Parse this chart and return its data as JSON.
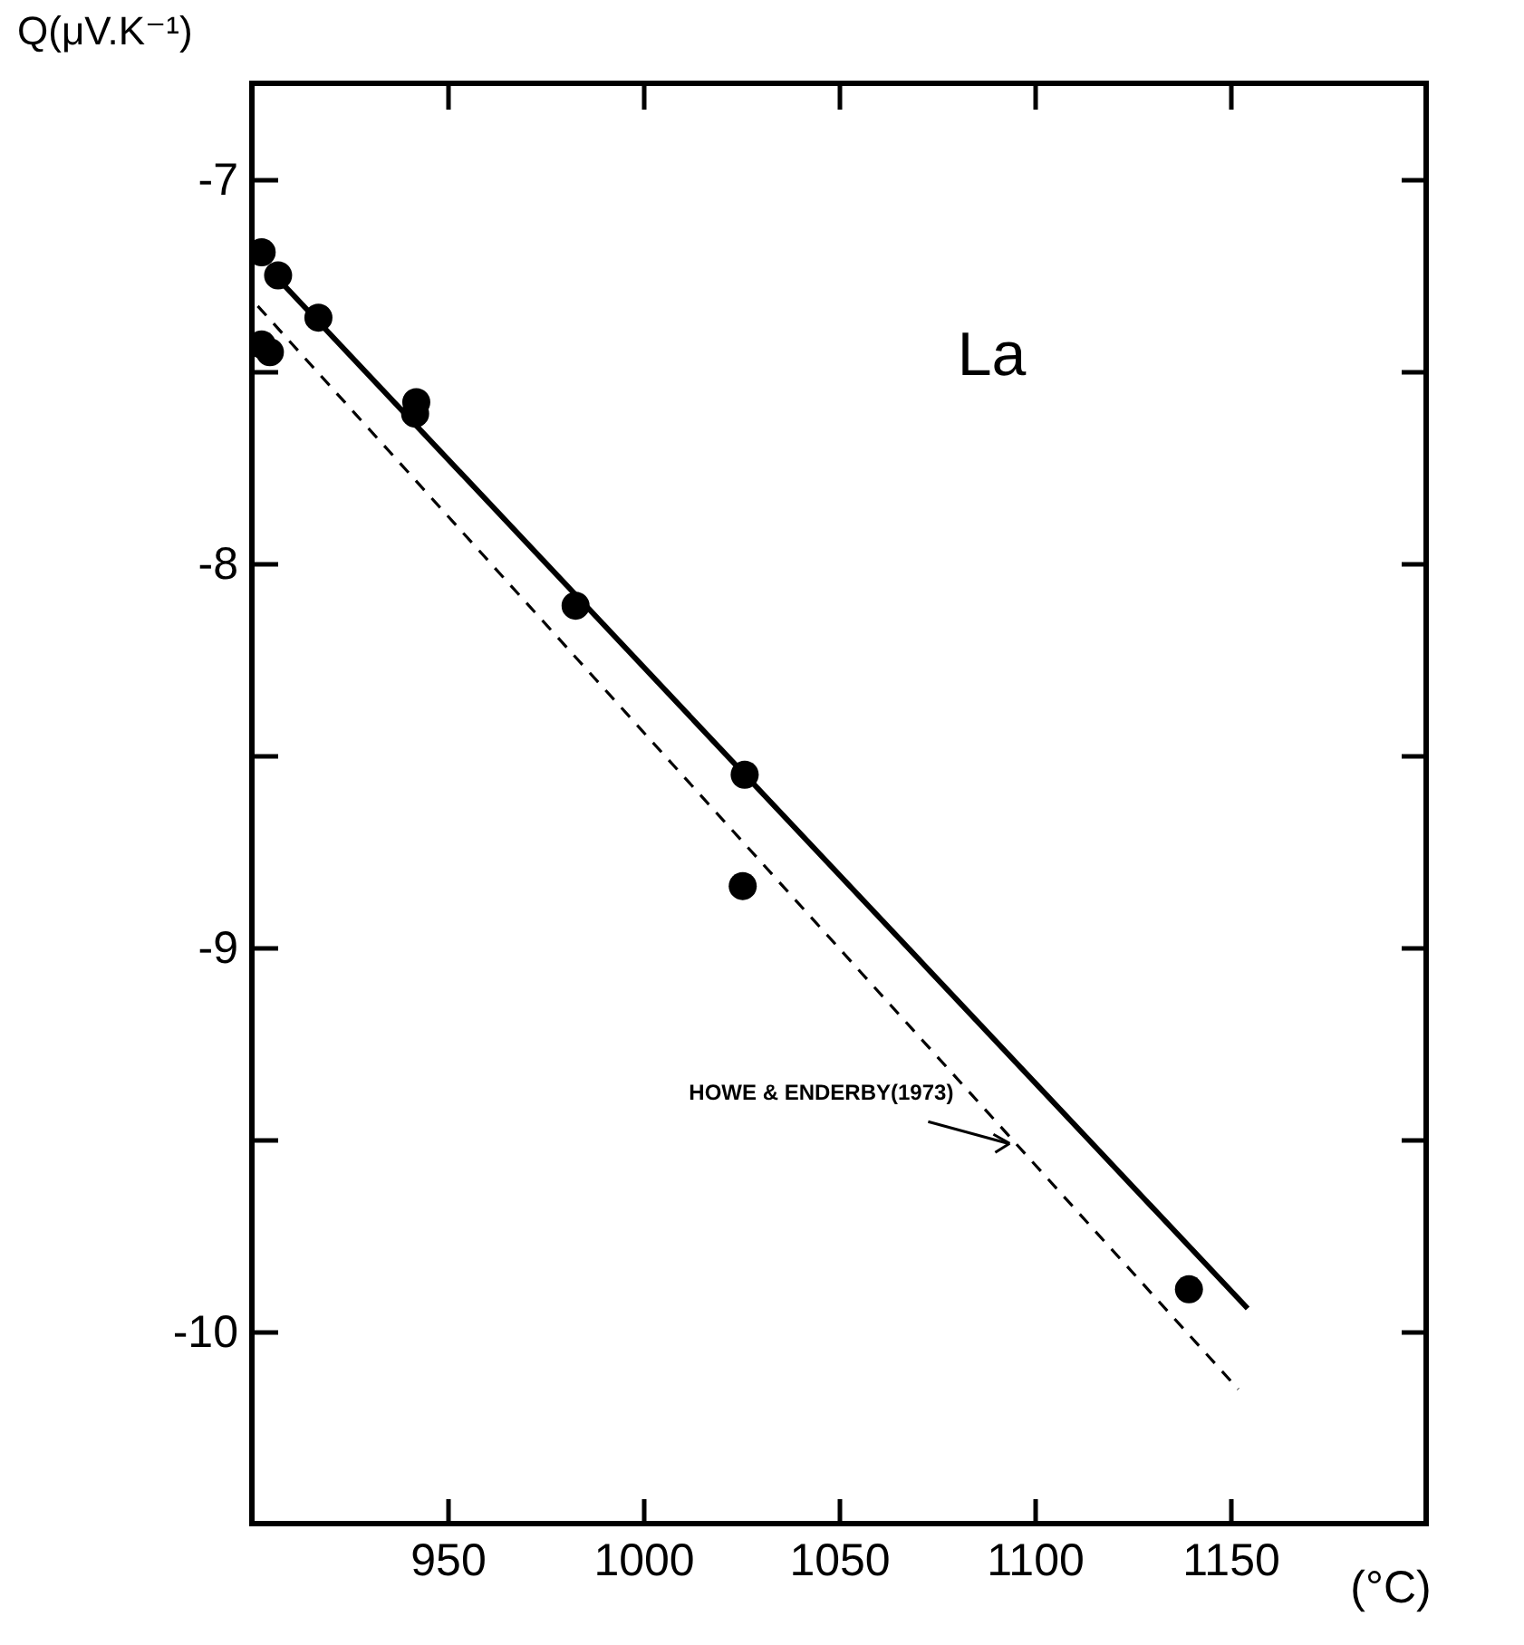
{
  "chart_data": {
    "type": "scatter",
    "xlabel": "(°C)",
    "ylabel": "Q(μV.K⁻¹)",
    "xlim": [
      900,
      1200
    ],
    "xticks": [
      950,
      1000,
      1050,
      1100,
      1150
    ],
    "ylim": [
      -10.5,
      -6.75
    ],
    "yticks": [
      -10,
      {
        "value": -9.5,
        "label": null
      },
      -9,
      {
        "value": -8.5,
        "label": null
      },
      -8,
      {
        "value": -7.5,
        "label": null
      },
      -7
    ],
    "grid": false,
    "series": [
      {
        "marker": "circle",
        "color": "#000000",
        "x": [
          902.5,
          906.7,
          917,
          902.5,
          904.6,
          942,
          941.7,
          982.7,
          1025.9,
          1025.4,
          1139.4
        ],
        "values": [
          -7.19,
          -7.25,
          -7.36,
          -7.43,
          -7.45,
          -7.58,
          -7.61,
          -8.11,
          -8.55,
          -8.84,
          -9.89
        ]
      },
      {
        "type": "line",
        "color": "#000000",
        "line_style": "solid",
        "x": [
          904,
          1154.4
        ],
        "values": [
          -7.23,
          -9.94
        ]
      },
      {
        "type": "line",
        "color": "#000000",
        "line_style": "dashed",
        "x": [
          901.5,
          1152
        ],
        "values": [
          -7.33,
          -10.15
        ]
      }
    ],
    "annotations": [
      "La",
      {
        "text": "HOWE & ENDERBY(1973)",
        "x": 1095,
        "y": -9.51
      }
    ]
  }
}
